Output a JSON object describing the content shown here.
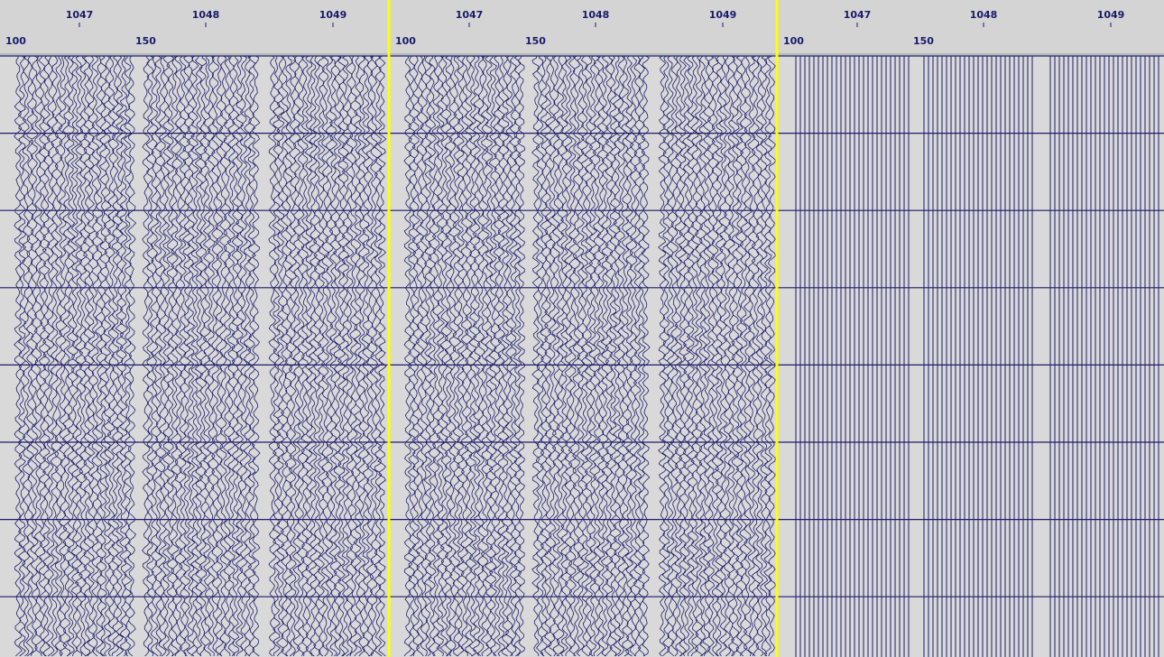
{
  "panels": [
    {
      "top_labels": [
        "1047",
        "1048",
        "1049"
      ],
      "sub_labels": [
        "100",
        "150"
      ]
    },
    {
      "top_labels": [
        "1047",
        "1048",
        "1049"
      ],
      "sub_labels": [
        "100",
        "150"
      ]
    },
    {
      "top_labels": [
        "1047",
        "1048",
        "1049"
      ],
      "sub_labels": [
        "100",
        "150"
      ]
    }
  ]
}
